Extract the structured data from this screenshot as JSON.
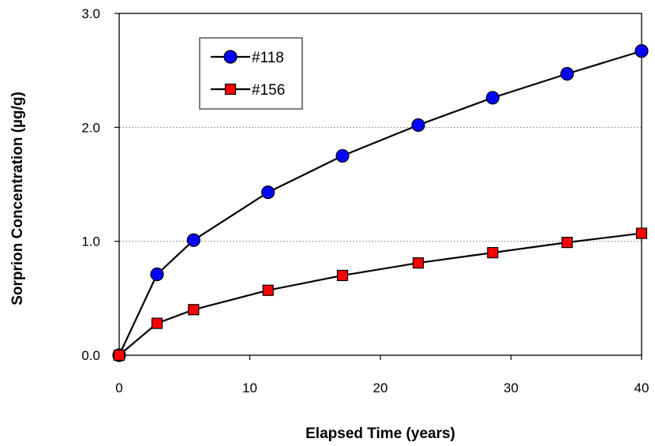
{
  "chart_data": {
    "type": "line",
    "xlabel": "Elapsed Time (years)",
    "ylabel": "Sorprion Concentration (µg/g)",
    "xlim": [
      0,
      40
    ],
    "ylim": [
      0,
      3.0
    ],
    "x_ticks": [
      "0",
      "10",
      "20",
      "30",
      "40"
    ],
    "y_ticks": [
      "0.0",
      "1.0",
      "2.0",
      "3.0"
    ],
    "grid": "horizontal dashed at 1.0 and 2.0",
    "legend_position": "top-left",
    "series": [
      {
        "name": "#118",
        "color": "#0000ff",
        "marker": "circle",
        "x": [
          0,
          2.9,
          5.7,
          11.4,
          17.1,
          22.9,
          28.6,
          34.3,
          40
        ],
        "values": [
          0.0,
          0.71,
          1.01,
          1.43,
          1.75,
          2.02,
          2.26,
          2.47,
          2.67
        ]
      },
      {
        "name": "#156",
        "color": "#ff0000",
        "marker": "square",
        "x": [
          0,
          2.9,
          5.7,
          11.4,
          17.1,
          22.9,
          28.6,
          34.3,
          40
        ],
        "values": [
          0.0,
          0.28,
          0.4,
          0.57,
          0.7,
          0.81,
          0.9,
          0.99,
          1.07
        ]
      }
    ]
  }
}
